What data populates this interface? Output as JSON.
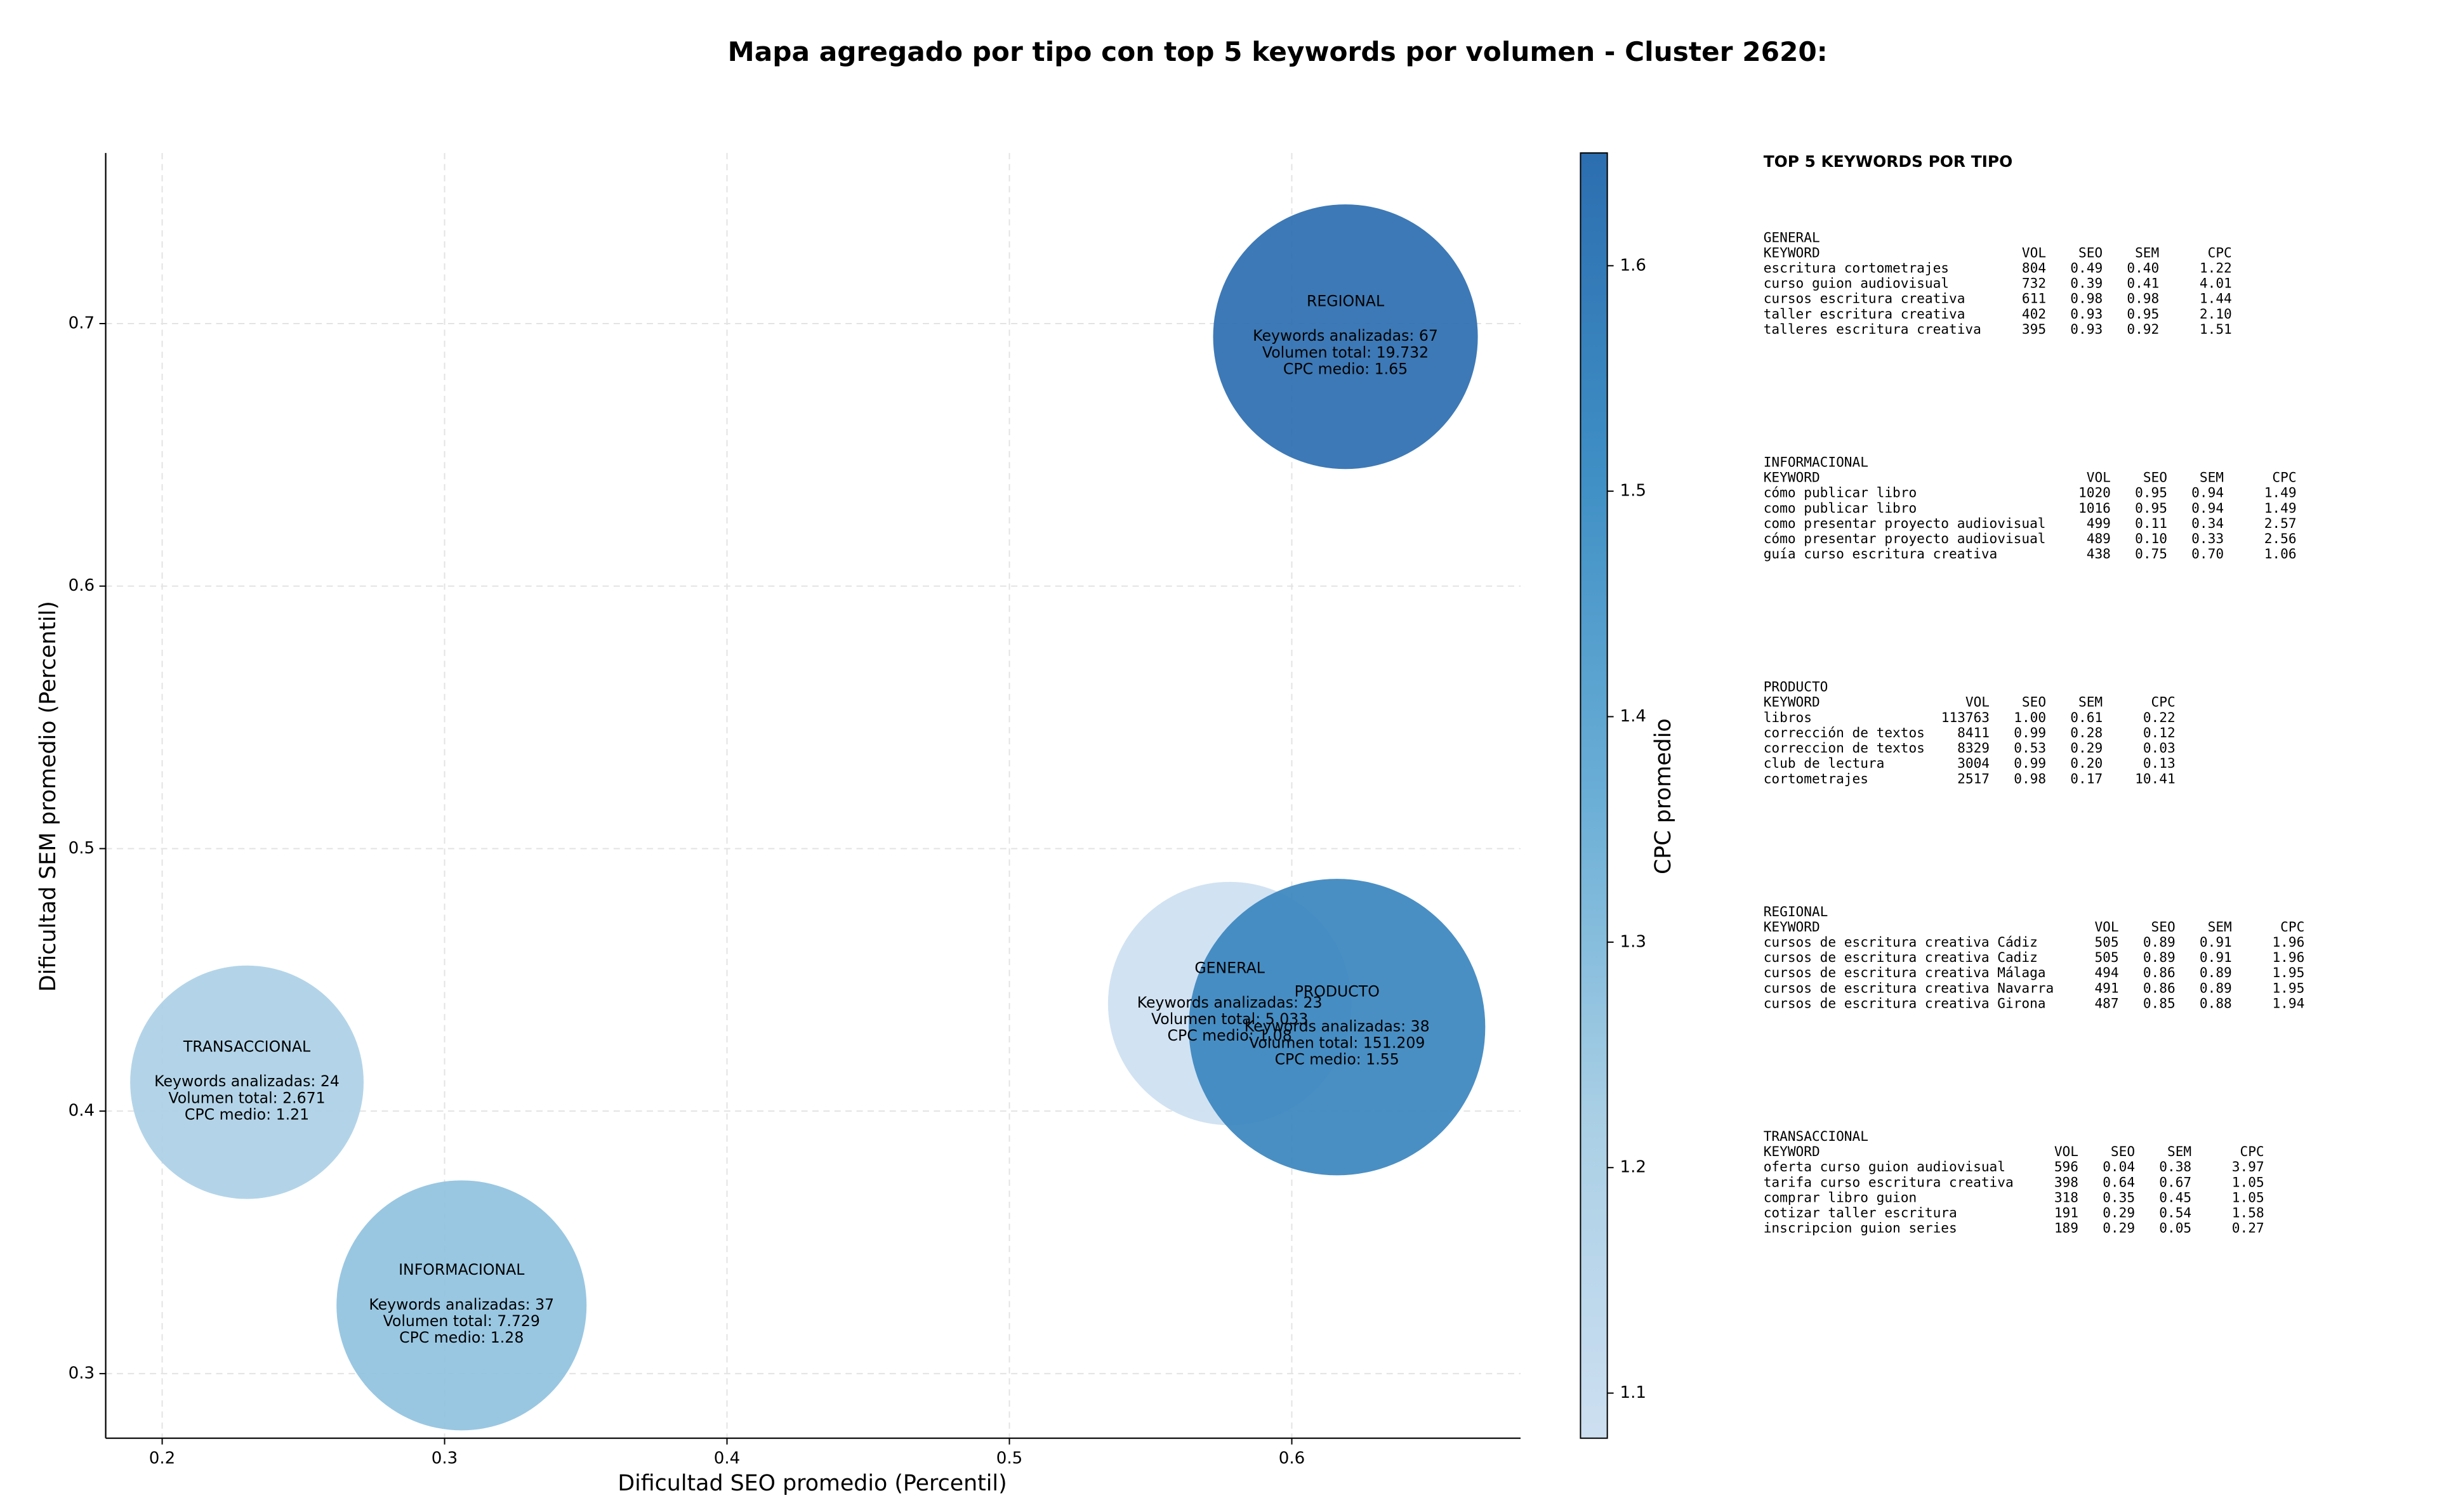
{
  "chart_data": {
    "type": "bubble",
    "title": "Mapa agregado por tipo con top 5 keywords por volumen - Cluster 2620:",
    "xlabel": "Dificultad SEO promedio (Percentil)",
    "ylabel": "Dificultad SEM promedio (Percentil)",
    "labels": [
      "GENERAL",
      "INFORMACIONAL",
      "PRODUCTO",
      "REGIONAL",
      "TRANSACCIONAL"
    ],
    "x": [
      0.578,
      0.306,
      0.616,
      0.619,
      0.23
    ],
    "y": [
      0.441,
      0.326,
      0.432,
      0.695,
      0.411
    ],
    "sizes": [
      5033,
      7729,
      151209,
      19732,
      2671
    ],
    "cpc": [
      1.08,
      1.28,
      1.55,
      1.65,
      1.21
    ],
    "annotations": [
      [
        "Keywords analizadas: 23",
        "Volumen total: 5.033",
        "CPC medio: 1.08"
      ],
      [
        "Keywords analizadas: 37",
        "Volumen total: 7.729",
        "CPC medio: 1.28"
      ],
      [
        "Keywords analizadas: 38",
        "Volumen total: 151.209",
        "CPC medio: 1.55"
      ],
      [
        "Keywords analizadas: 67",
        "Volumen total: 19.732",
        "CPC medio: 1.65"
      ],
      [
        "Keywords analizadas: 24",
        "Volumen total: 2.671",
        "CPC medio: 1.21"
      ]
    ],
    "xlim": [
      0.18,
      0.681
    ],
    "xticks": [
      0.2,
      0.3,
      0.4,
      0.5,
      0.6
    ],
    "ylim": [
      0.2754,
      0.765
    ],
    "yticks": [
      0.3,
      0.4,
      0.5,
      0.6,
      0.7
    ],
    "grid": true,
    "colorbar": {
      "label": "CPC promedio",
      "clim": [
        1.08,
        1.65
      ],
      "ticks": [
        1.1,
        1.2,
        1.3,
        1.4,
        1.5,
        1.6
      ],
      "colormap": [
        "#cddff1",
        "#a9cfe5",
        "#6aaed6",
        "#3f8fc5",
        "#2c6eb0"
      ]
    },
    "alpha": 0.92
  },
  "side_panel": {
    "title": "TOP 5 KEYWORDS POR TIPO",
    "tables": [
      {
        "name": "GENERAL",
        "columns": [
          "KEYWORD",
          "VOL",
          "SEO",
          "SEM",
          "CPC"
        ],
        "rows": [
          [
            "escritura cortometrajes",
            "804",
            "0.49",
            "0.40",
            "1.22"
          ],
          [
            "curso guion audiovisual",
            "732",
            "0.39",
            "0.41",
            "4.01"
          ],
          [
            "cursos escritura creativa",
            "611",
            "0.98",
            "0.98",
            "1.44"
          ],
          [
            "taller escritura creativa",
            "402",
            "0.93",
            "0.95",
            "2.10"
          ],
          [
            "talleres escritura creativa",
            "395",
            "0.93",
            "0.92",
            "1.51"
          ]
        ]
      },
      {
        "name": "INFORMACIONAL",
        "columns": [
          "KEYWORD",
          "VOL",
          "SEO",
          "SEM",
          "CPC"
        ],
        "rows": [
          [
            "cómo publicar libro",
            "1020",
            "0.95",
            "0.94",
            "1.49"
          ],
          [
            "como publicar libro",
            "1016",
            "0.95",
            "0.94",
            "1.49"
          ],
          [
            "como presentar proyecto audiovisual",
            "499",
            "0.11",
            "0.34",
            "2.57"
          ],
          [
            "cómo presentar proyecto audiovisual",
            "489",
            "0.10",
            "0.33",
            "2.56"
          ],
          [
            "guía curso escritura creativa",
            "438",
            "0.75",
            "0.70",
            "1.06"
          ]
        ]
      },
      {
        "name": "PRODUCTO",
        "columns": [
          "KEYWORD",
          "VOL",
          "SEO",
          "SEM",
          "CPC"
        ],
        "rows": [
          [
            "libros",
            "113763",
            "1.00",
            "0.61",
            "0.22"
          ],
          [
            "corrección de textos",
            "8411",
            "0.99",
            "0.28",
            "0.12"
          ],
          [
            "correccion de textos",
            "8329",
            "0.53",
            "0.29",
            "0.03"
          ],
          [
            "club de lectura",
            "3004",
            "0.99",
            "0.20",
            "0.13"
          ],
          [
            "cortometrajes",
            "2517",
            "0.98",
            "0.17",
            "10.41"
          ]
        ]
      },
      {
        "name": "REGIONAL",
        "columns": [
          "KEYWORD",
          "VOL",
          "SEO",
          "SEM",
          "CPC"
        ],
        "rows": [
          [
            "cursos de escritura creativa Cádiz",
            "505",
            "0.89",
            "0.91",
            "1.96"
          ],
          [
            "cursos de escritura creativa Cadiz",
            "505",
            "0.89",
            "0.91",
            "1.96"
          ],
          [
            "cursos de escritura creativa Málaga",
            "494",
            "0.86",
            "0.89",
            "1.95"
          ],
          [
            "cursos de escritura creativa Navarra",
            "491",
            "0.86",
            "0.89",
            "1.95"
          ],
          [
            "cursos de escritura creativa Girona",
            "487",
            "0.85",
            "0.88",
            "1.94"
          ]
        ]
      },
      {
        "name": "TRANSACCIONAL",
        "columns": [
          "KEYWORD",
          "VOL",
          "SEO",
          "SEM",
          "CPC"
        ],
        "rows": [
          [
            "oferta curso guion audiovisual",
            "596",
            "0.04",
            "0.38",
            "3.97"
          ],
          [
            "tarifa curso escritura creativa",
            "398",
            "0.64",
            "0.67",
            "1.05"
          ],
          [
            "comprar libro guion",
            "318",
            "0.35",
            "0.45",
            "1.05"
          ],
          [
            "cotizar taller escritura",
            "191",
            "0.29",
            "0.54",
            "1.58"
          ],
          [
            "inscripcion guion series",
            "189",
            "0.29",
            "0.05",
            "0.27"
          ]
        ]
      }
    ]
  }
}
